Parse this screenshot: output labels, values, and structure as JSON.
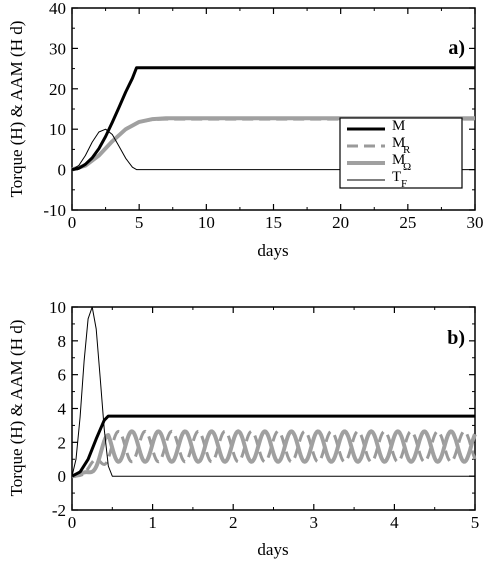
{
  "chart_data": [
    {
      "type": "line",
      "panel_label": "a)",
      "xlabel": "days",
      "ylabel": "Torque (H) & AAM (H d)",
      "xlim": [
        0,
        30
      ],
      "ylim": [
        -10,
        40
      ],
      "xticks": [
        "0",
        "5",
        "10",
        "15",
        "20",
        "25",
        "30"
      ],
      "yticks": [
        "-10",
        "0",
        "10",
        "20",
        "30",
        "40"
      ],
      "legend_position": "right",
      "legend": [
        {
          "main": "M",
          "sub": "",
          "style": "thick-black"
        },
        {
          "main": "M",
          "sub": "R",
          "style": "dashed-gray"
        },
        {
          "main": "M",
          "sub": "Ω",
          "style": "thick-gray"
        },
        {
          "main": "T",
          "sub": "F",
          "style": "thin-black"
        }
      ],
      "series": [
        {
          "name": "M",
          "style": "thick-black",
          "x": [
            0,
            0.5,
            1,
            1.5,
            2,
            2.5,
            3,
            3.5,
            4,
            4.5,
            4.8,
            30
          ],
          "y": [
            0,
            0.3,
            1.3,
            2.9,
            5.2,
            8.2,
            11.7,
            15.4,
            19.2,
            22.6,
            25.2,
            25.2
          ]
        },
        {
          "name": "M_R",
          "style": "dashed-gray",
          "x": [
            0,
            1,
            2,
            3,
            4,
            5,
            6,
            7,
            30
          ],
          "y": [
            0,
            1.0,
            3.5,
            7.0,
            10.0,
            11.8,
            12.4,
            12.5,
            12.5
          ]
        },
        {
          "name": "M_Ω",
          "style": "thick-gray",
          "x": [
            0,
            1,
            2,
            3,
            4,
            5,
            6,
            7,
            30
          ],
          "y": [
            0,
            1.0,
            3.5,
            7.0,
            10.0,
            11.8,
            12.5,
            12.7,
            12.7
          ]
        },
        {
          "name": "T_F",
          "style": "thin-black",
          "x": [
            0,
            0.5,
            1,
            1.5,
            2,
            2.5,
            3,
            3.5,
            4,
            4.5,
            4.8,
            30
          ],
          "y": [
            0,
            1.0,
            3.5,
            6.8,
            9.3,
            10.0,
            8.7,
            5.8,
            2.8,
            0.6,
            0,
            0
          ]
        }
      ]
    },
    {
      "type": "line",
      "panel_label": "b)",
      "xlabel": "days",
      "ylabel": "Torque (H) & AAM (H d)",
      "xlim": [
        0,
        5
      ],
      "ylim": [
        -2,
        10
      ],
      "xticks": [
        "0",
        "1",
        "2",
        "3",
        "4",
        "5"
      ],
      "yticks": [
        "-2",
        "0",
        "2",
        "4",
        "6",
        "8",
        "10"
      ],
      "oscillation": {
        "center": 1.75,
        "amplitude": 0.9,
        "period_days": 0.33
      },
      "series": [
        {
          "name": "M",
          "style": "thick-black",
          "x": [
            0,
            0.1,
            0.2,
            0.3,
            0.4,
            0.45,
            5
          ],
          "y": [
            0,
            0.25,
            1.0,
            2.2,
            3.3,
            3.55,
            3.55
          ]
        },
        {
          "name": "T_F",
          "style": "thin-black",
          "x": [
            0,
            0.05,
            0.1,
            0.15,
            0.2,
            0.25,
            0.3,
            0.35,
            0.4,
            0.45,
            0.5,
            5
          ],
          "y": [
            0,
            1.0,
            3.5,
            6.8,
            9.3,
            10.0,
            8.7,
            5.8,
            2.8,
            0.6,
            0,
            0
          ]
        },
        {
          "name": "M_R",
          "style": "dashed-gray",
          "kind": "oscillating",
          "phase": 3.14159
        },
        {
          "name": "M_Ω",
          "style": "thick-gray",
          "kind": "oscillating",
          "phase": 0
        }
      ]
    }
  ]
}
